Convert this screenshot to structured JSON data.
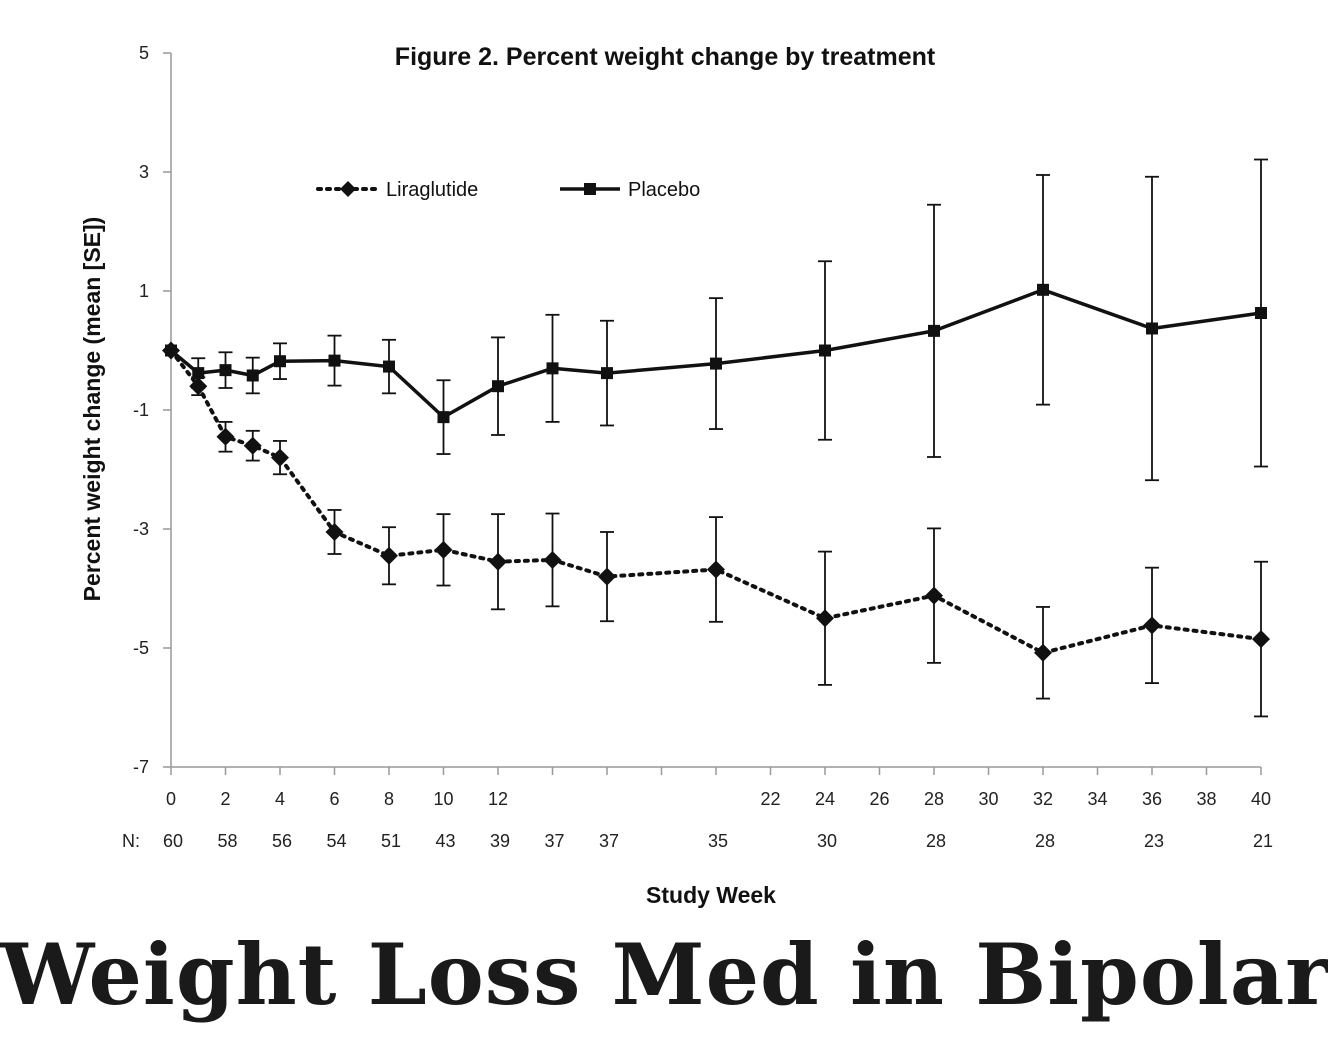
{
  "banner": {
    "text": "Weight Loss Med in Bipolar"
  },
  "chart_data": {
    "type": "line",
    "title": "Figure 2. Percent weight change by treatment",
    "xlabel": "Study Week",
    "ylabel": "Percent weight change (mean [SE])",
    "xlim": [
      0,
      40
    ],
    "ylim": [
      -7,
      5
    ],
    "yticks": [
      5,
      3,
      1,
      -1,
      -3,
      -5,
      -7
    ],
    "xticks": [
      0,
      2,
      4,
      6,
      8,
      10,
      12,
      22,
      24,
      26,
      28,
      30,
      32,
      34,
      36,
      38,
      40
    ],
    "n_row": {
      "label": "N:",
      "weeks": [
        0,
        2,
        4,
        6,
        8,
        10,
        12,
        14,
        16,
        20,
        24,
        28,
        32,
        36,
        40
      ],
      "values": [
        "60",
        "58",
        "56",
        "54",
        "51",
        "43",
        "39",
        "37",
        "37",
        "35",
        "30",
        "28",
        "28",
        "23",
        "21"
      ]
    },
    "legend": {
      "position": "top-left"
    },
    "series": [
      {
        "name": "Liraglutide",
        "style": "dotted",
        "marker": "diamond",
        "x": [
          0,
          1,
          2,
          3,
          4,
          6,
          8,
          10,
          12,
          14,
          16,
          20,
          24,
          28,
          32,
          36,
          40
        ],
        "y": [
          0,
          -0.6,
          -1.45,
          -1.6,
          -1.8,
          -3.05,
          -3.45,
          -3.35,
          -3.55,
          -3.52,
          -3.8,
          -3.68,
          -4.5,
          -4.12,
          -5.08,
          -4.62,
          -4.85
        ],
        "se": [
          0,
          0.15,
          0.25,
          0.25,
          0.28,
          0.37,
          0.48,
          0.6,
          0.8,
          0.78,
          0.75,
          0.88,
          1.12,
          1.13,
          0.77,
          0.97,
          1.3
        ]
      },
      {
        "name": "Placebo",
        "style": "solid",
        "marker": "square",
        "x": [
          0,
          1,
          2,
          3,
          4,
          6,
          8,
          10,
          12,
          14,
          16,
          20,
          24,
          28,
          32,
          36,
          40
        ],
        "y": [
          0,
          -0.38,
          -0.33,
          -0.42,
          -0.18,
          -0.17,
          -0.27,
          -1.12,
          -0.6,
          -0.3,
          -0.38,
          -0.22,
          0,
          0.33,
          1.02,
          0.37,
          0.63
        ],
        "se": [
          0,
          0.25,
          0.3,
          0.3,
          0.3,
          0.42,
          0.45,
          0.62,
          0.82,
          0.9,
          0.88,
          1.1,
          1.5,
          2.12,
          1.93,
          2.55,
          2.58
        ]
      }
    ]
  }
}
